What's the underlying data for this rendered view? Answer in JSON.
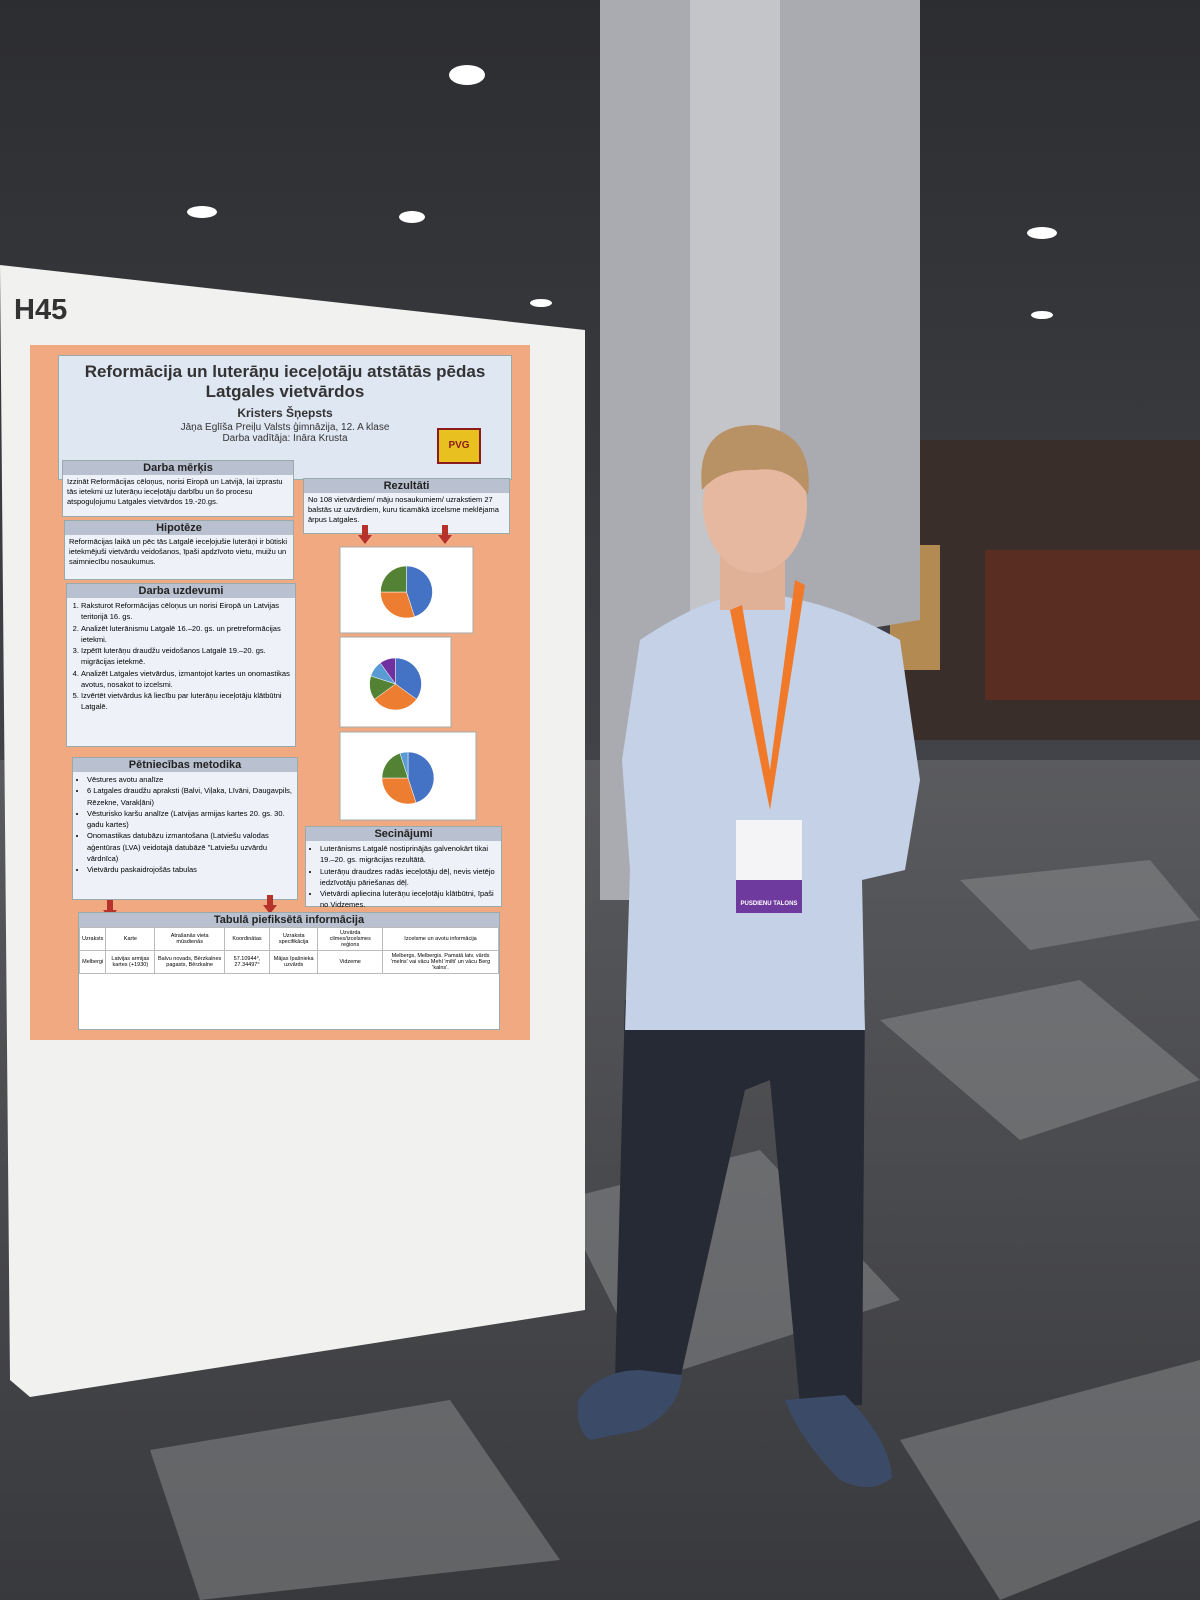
{
  "board_label": "H45",
  "poster": {
    "title": "Reformācija un luterāņu ieceļotāju atstātās pēdas Latgales vietvārdos",
    "author": "Kristers Šņepsts",
    "school": "Jāņa Eglīša Preiļu Valsts ģimnāzija, 12. A klase",
    "supervisor": "Darba vadītāja: Ināra Krusta",
    "logo": "PVG",
    "goal": {
      "heading": "Darba mērķis",
      "text": "Izzināt Reformācijas cēloņus, norisi Eiropā un Latvijā, lai izprastu tās ietekmi uz luterāņu ieceļotāju darbību un šo procesu atspoguļojumu Latgales vietvārdos 19.-20.gs."
    },
    "hypothesis": {
      "heading": "Hipotēze",
      "text": "Reformācijas laikā un pēc tās Latgalē ieceļojušie luterāņi ir būtiski ietekmējuši vietvārdu veidošanos, īpaši apdzīvoto vietu, muižu un saimniecību nosaukumus."
    },
    "tasks": {
      "heading": "Darba uzdevumi",
      "items": [
        "Raksturot Reformācijas cēloņus un norisi Eiropā un Latvijas teritorijā 16. gs.",
        "Analizēt luterānismu Latgalē 16.–20. gs. un pretreformācijas ietekmi.",
        "Izpētīt luterāņu draudžu veidošanos Latgalē 19.–20. gs. migrācijas ietekmē.",
        "Analizēt Latgales vietvārdus, izmantojot kartes un onomastikas avotus, nosakot to izcelsmi.",
        "Izvērtēt vietvārdus kā liecību par luterāņu ieceļotāju klātbūtni Latgalē."
      ]
    },
    "methods": {
      "heading": "Pētniecības metodika",
      "items": [
        "Vēstures avotu analīze",
        "6 Latgales draudžu apraksti (Balvi, Viļaka, Līvāni, Daugavpils, Rēzekne, Varakļāni)",
        "Vēsturisko karšu analīze (Latvijas armijas kartes 20. gs. 30. gadu kartes)",
        "Onomastikas datubāzu izmantošana (Latviešu valodas aģentūras (LVA) veidotajā datubāzē \"Latviešu uzvārdu vārdnīca)",
        "Vietvārdu paskaidrojošās tabulas"
      ]
    },
    "results": {
      "heading": "Rezultāti",
      "text": "No 108 vietvārdiem/ māju nosaukumiem/ uzrakstiem 27 balstās uz uzvārdiem, kuru ticamākā izcelsme meklējama ārpus Latgales."
    },
    "charts": [
      {
        "values": [
          45,
          30,
          25
        ],
        "colors": [
          "#4472c4",
          "#ed7d31",
          "#548235"
        ]
      },
      {
        "values": [
          35,
          30,
          15,
          10,
          10
        ],
        "colors": [
          "#4472c4",
          "#ed7d31",
          "#548235",
          "#5b9bd5",
          "#7030a0"
        ]
      },
      {
        "values": [
          45,
          30,
          20,
          5
        ],
        "colors": [
          "#4472c4",
          "#ed7d31",
          "#548235",
          "#5b9bd5"
        ]
      }
    ],
    "conclusions": {
      "heading": "Secinājumi",
      "items": [
        "Luterānisms Latgalē nostiprinājās galvenokārt tikai 19.–20. gs. migrācijas rezultātā.",
        "Luterāņu draudzes radās ieceļotāju dēļ, nevis vietējo iedzīvotāju pāriešanas dēļ.",
        "Vietvārdi apliecina luterāņu ieceļotāju klātbūtni, īpaši no Vidzemes."
      ]
    },
    "table": {
      "heading": "Tabulā piefiksētā informācija",
      "columns": [
        "Uzraksts",
        "Karte",
        "Atrašanās vieta mūsdienās",
        "Koordinātas",
        "Uzraksta specifikācija",
        "Uzvārda cilmes/izcelsmes reģions",
        "Izcelsme un avotu informācija"
      ],
      "rows": [
        [
          "Melbergi",
          "Latvijas armijas kartes (+1930)",
          "Balvu novads, Bērzkalnes pagasts, Bērzkalne",
          "57.10944°, 27.34497°",
          "Mājas īpašnieka uzvārds",
          "Vidzeme",
          "Melbergs, Melbergis. Pamatā latv. vārds 'melns' vai vācu Mehl 'milti' un vācu Berg 'kalns'."
        ]
      ]
    }
  },
  "badge": "PUSDIENU TALONS"
}
